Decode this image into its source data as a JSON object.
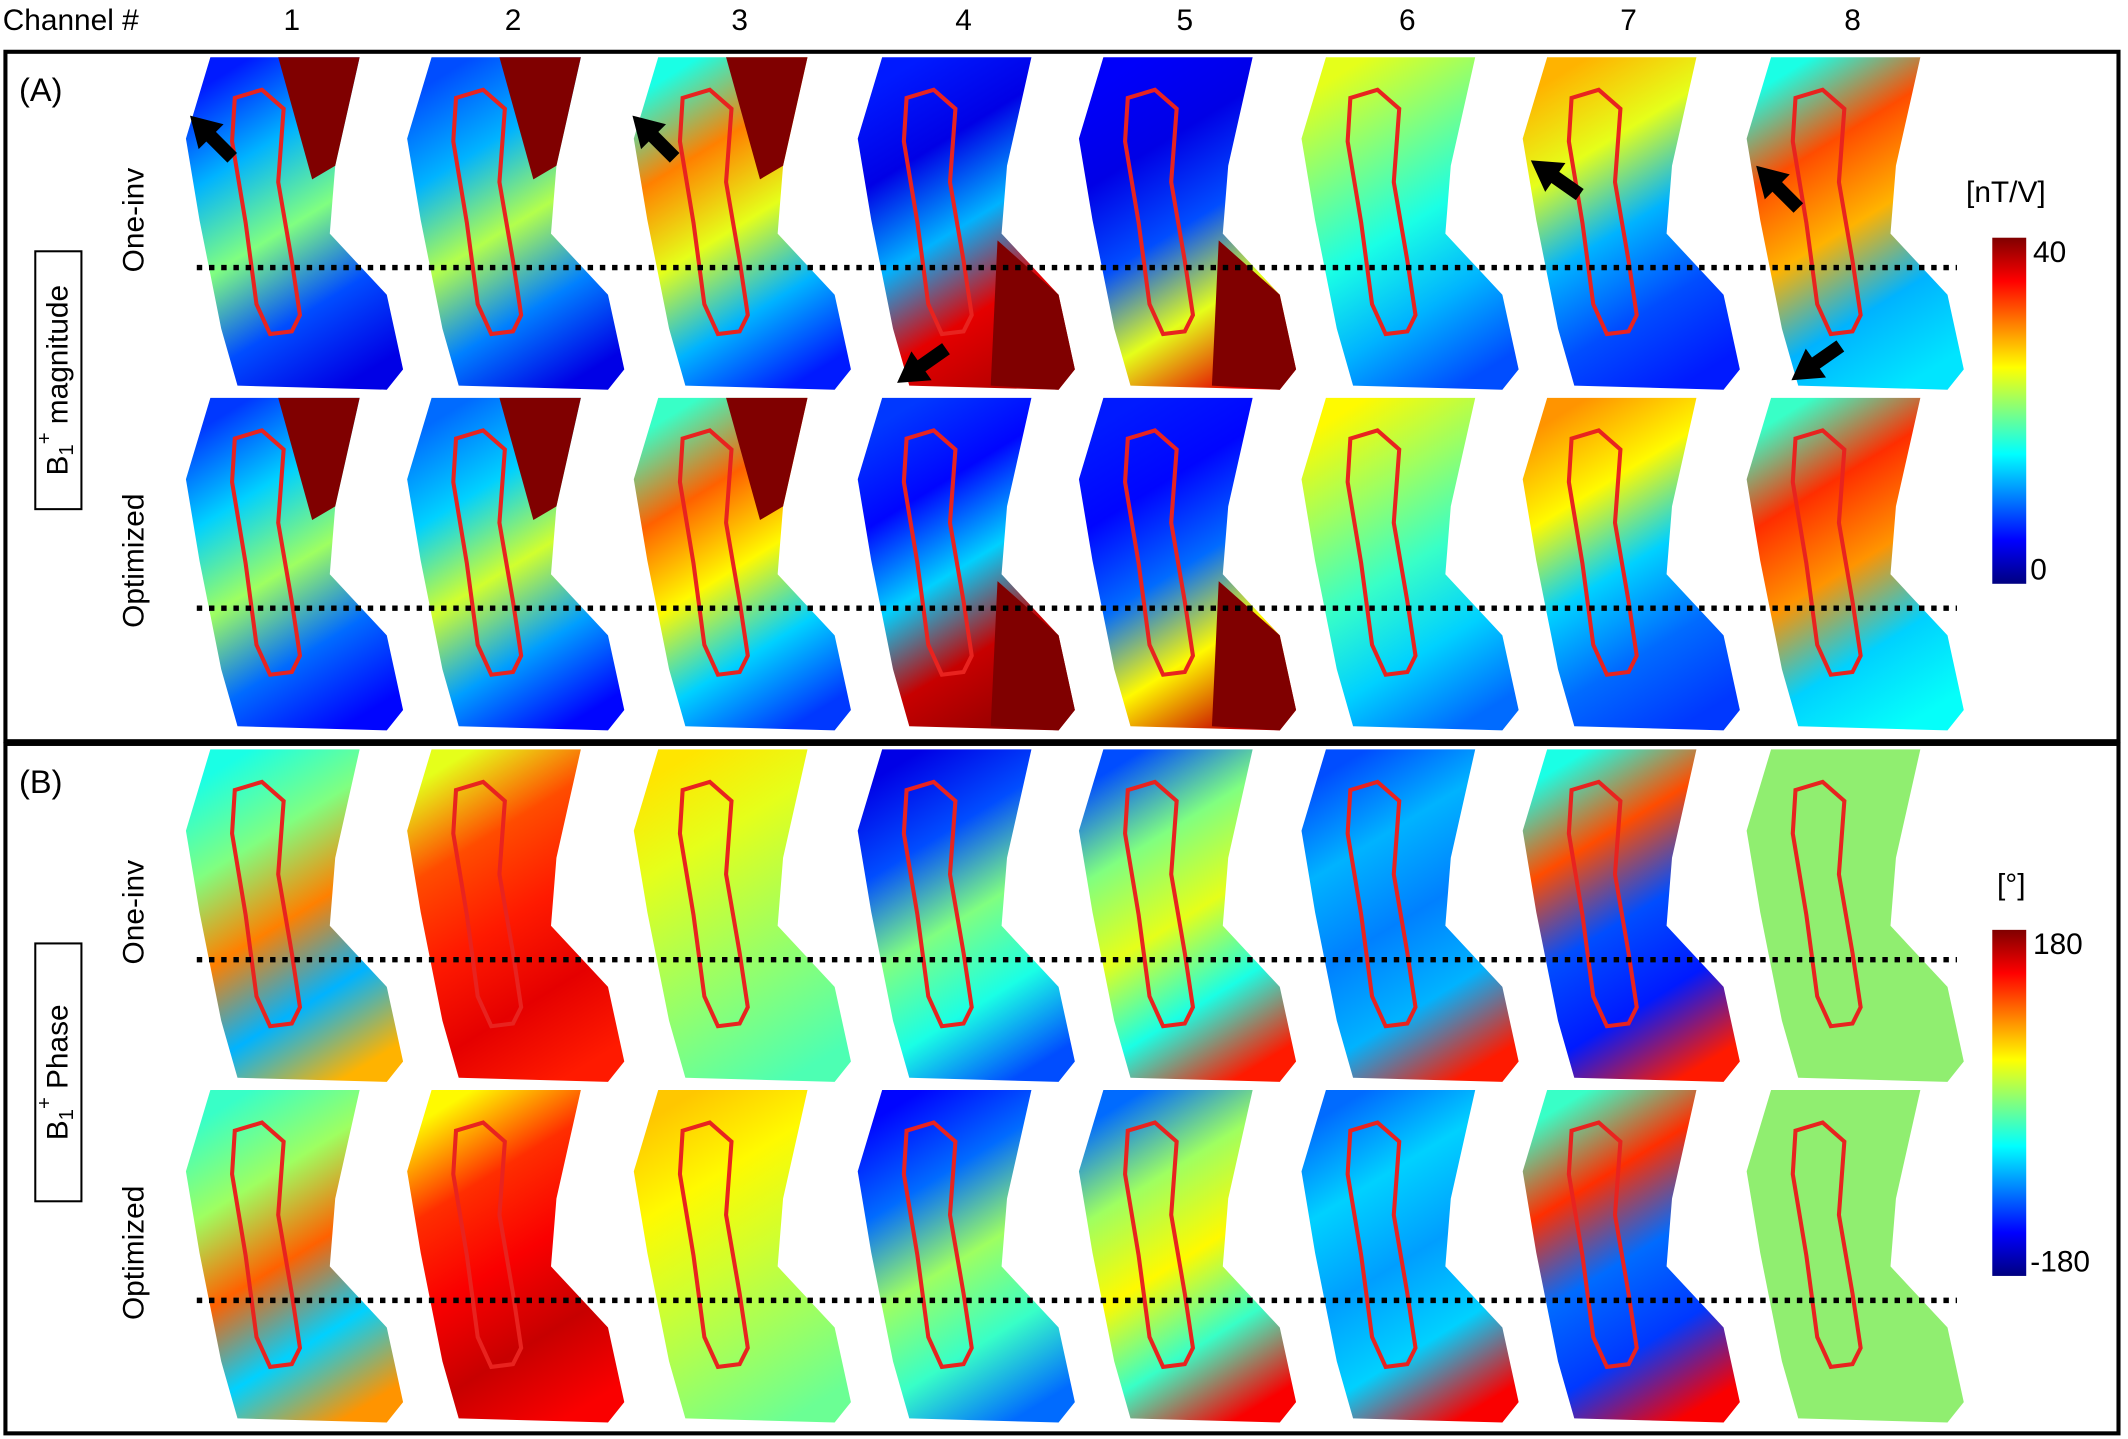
{
  "header": {
    "label": "Channel #",
    "channels": [
      "1",
      "2",
      "3",
      "4",
      "5",
      "6",
      "7",
      "8"
    ]
  },
  "panels": [
    {
      "tag": "(A)",
      "quantity": {
        "base": "B",
        "sub": "1",
        "sup": "+",
        "text": "magnitude"
      },
      "rows": [
        "One-inv",
        "Optimized"
      ],
      "colorbar": {
        "unit": "[nT/V]",
        "max": 40,
        "min": 0
      }
    },
    {
      "tag": "(B)",
      "quantity": {
        "base": "B",
        "sub": "1",
        "sup": "+",
        "text": "Phase"
      },
      "rows": [
        "One-inv",
        "Optimized"
      ],
      "colorbar": {
        "unit": "[°]",
        "max": 180,
        "min": -180
      }
    }
  ]
}
